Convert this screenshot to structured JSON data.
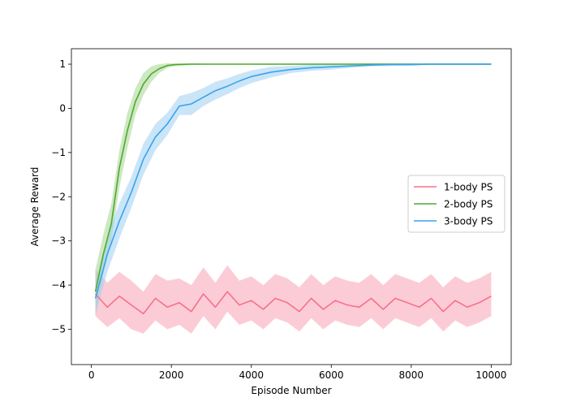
{
  "chart_data": {
    "type": "line",
    "title": "",
    "xlabel": "Episode Number",
    "ylabel": "Average Reward",
    "xlim": [
      -500,
      10500
    ],
    "ylim": [
      -5.8,
      1.35
    ],
    "xticks": [
      0,
      2000,
      4000,
      6000,
      8000,
      10000
    ],
    "xtick_labels": [
      "0",
      "2000",
      "4000",
      "6000",
      "8000",
      "10000"
    ],
    "yticks": [
      -5,
      -4,
      -3,
      -2,
      -1,
      0,
      1
    ],
    "ytick_labels": [
      "−5",
      "−4",
      "−3",
      "−2",
      "−1",
      "0",
      "1"
    ],
    "grid": false,
    "legend_position": "center-right",
    "series": [
      {
        "name": "1-body PS",
        "color": "#f77189",
        "band_color": "#f9a3b5",
        "x": [
          100,
          400,
          700,
          1000,
          1300,
          1600,
          1900,
          2200,
          2500,
          2800,
          3100,
          3400,
          3700,
          4000,
          4300,
          4600,
          4900,
          5200,
          5500,
          5800,
          6100,
          6400,
          6700,
          7000,
          7300,
          7600,
          7900,
          8200,
          8500,
          8800,
          9100,
          9400,
          9700,
          10000
        ],
        "y": [
          -4.2,
          -4.5,
          -4.25,
          -4.45,
          -4.65,
          -4.3,
          -4.5,
          -4.4,
          -4.6,
          -4.2,
          -4.5,
          -4.15,
          -4.45,
          -4.35,
          -4.55,
          -4.3,
          -4.4,
          -4.6,
          -4.3,
          -4.55,
          -4.35,
          -4.45,
          -4.5,
          -4.3,
          -4.55,
          -4.3,
          -4.4,
          -4.5,
          -4.3,
          -4.6,
          -4.35,
          -4.5,
          -4.4,
          -4.25
        ],
        "lower": [
          -4.7,
          -4.95,
          -4.75,
          -5.0,
          -5.1,
          -4.8,
          -5.0,
          -4.9,
          -5.1,
          -4.7,
          -5.0,
          -4.6,
          -4.9,
          -4.8,
          -5.0,
          -4.75,
          -4.85,
          -5.05,
          -4.75,
          -5.0,
          -4.8,
          -4.9,
          -4.95,
          -4.75,
          -5.0,
          -4.75,
          -4.85,
          -4.95,
          -4.75,
          -5.05,
          -4.8,
          -4.95,
          -4.85,
          -4.7
        ],
        "upper": [
          -3.65,
          -3.95,
          -3.7,
          -3.9,
          -4.15,
          -3.75,
          -3.9,
          -3.85,
          -4.0,
          -3.6,
          -3.95,
          -3.55,
          -3.9,
          -3.8,
          -4.0,
          -3.75,
          -3.85,
          -4.05,
          -3.75,
          -4.0,
          -3.8,
          -3.9,
          -3.95,
          -3.75,
          -4.0,
          -3.75,
          -3.85,
          -3.95,
          -3.75,
          -4.05,
          -3.8,
          -3.95,
          -3.85,
          -3.7
        ]
      },
      {
        "name": "2-body PS",
        "color": "#4daa2f",
        "band_color": "#a6d58f",
        "x": [
          100,
          300,
          500,
          700,
          900,
          1100,
          1300,
          1500,
          1700,
          1900,
          2100,
          2500,
          3000,
          4000,
          5000,
          6000,
          7000,
          8000,
          9000,
          10000
        ],
        "y": [
          -4.15,
          -3.3,
          -2.6,
          -1.35,
          -0.5,
          0.15,
          0.55,
          0.78,
          0.9,
          0.97,
          0.99,
          1.0,
          1.0,
          1.0,
          1.0,
          1.0,
          1.0,
          1.0,
          1.0,
          1.0
        ],
        "lower": [
          -4.6,
          -3.75,
          -3.0,
          -1.8,
          -0.9,
          -0.15,
          0.3,
          0.6,
          0.8,
          0.92,
          0.96,
          0.98,
          0.99,
          0.99,
          0.99,
          0.99,
          0.99,
          0.99,
          0.99,
          0.99
        ],
        "upper": [
          -3.65,
          -2.85,
          -2.15,
          -0.95,
          -0.1,
          0.45,
          0.8,
          0.95,
          1.0,
          1.02,
          1.02,
          1.02,
          1.01,
          1.01,
          1.01,
          1.01,
          1.01,
          1.01,
          1.01,
          1.01
        ]
      },
      {
        "name": "3-body PS",
        "color": "#3ba3ec",
        "band_color": "#9fcff3",
        "x": [
          100,
          400,
          700,
          1000,
          1300,
          1600,
          1900,
          2200,
          2500,
          2800,
          3100,
          3400,
          3700,
          4000,
          4500,
          5000,
          5500,
          6000,
          6500,
          7000,
          7500,
          8000,
          8500,
          9000,
          9500,
          10000
        ],
        "y": [
          -4.3,
          -3.3,
          -2.55,
          -1.9,
          -1.15,
          -0.65,
          -0.35,
          0.05,
          0.1,
          0.25,
          0.4,
          0.5,
          0.62,
          0.72,
          0.82,
          0.88,
          0.92,
          0.94,
          0.96,
          0.98,
          0.99,
          0.99,
          1.0,
          1.0,
          1.0,
          1.0
        ],
        "lower": [
          -4.7,
          -3.7,
          -2.95,
          -2.25,
          -1.5,
          -0.95,
          -0.6,
          -0.15,
          -0.15,
          0.05,
          0.2,
          0.32,
          0.46,
          0.57,
          0.7,
          0.8,
          0.85,
          0.88,
          0.92,
          0.95,
          0.96,
          0.97,
          0.98,
          0.98,
          0.98,
          0.98
        ],
        "upper": [
          -3.9,
          -2.9,
          -2.15,
          -1.55,
          -0.8,
          -0.35,
          -0.1,
          0.28,
          0.35,
          0.46,
          0.6,
          0.68,
          0.78,
          0.86,
          0.94,
          0.96,
          0.99,
          1.0,
          1.01,
          1.02,
          1.02,
          1.02,
          1.02,
          1.02,
          1.02,
          1.02
        ]
      }
    ]
  }
}
